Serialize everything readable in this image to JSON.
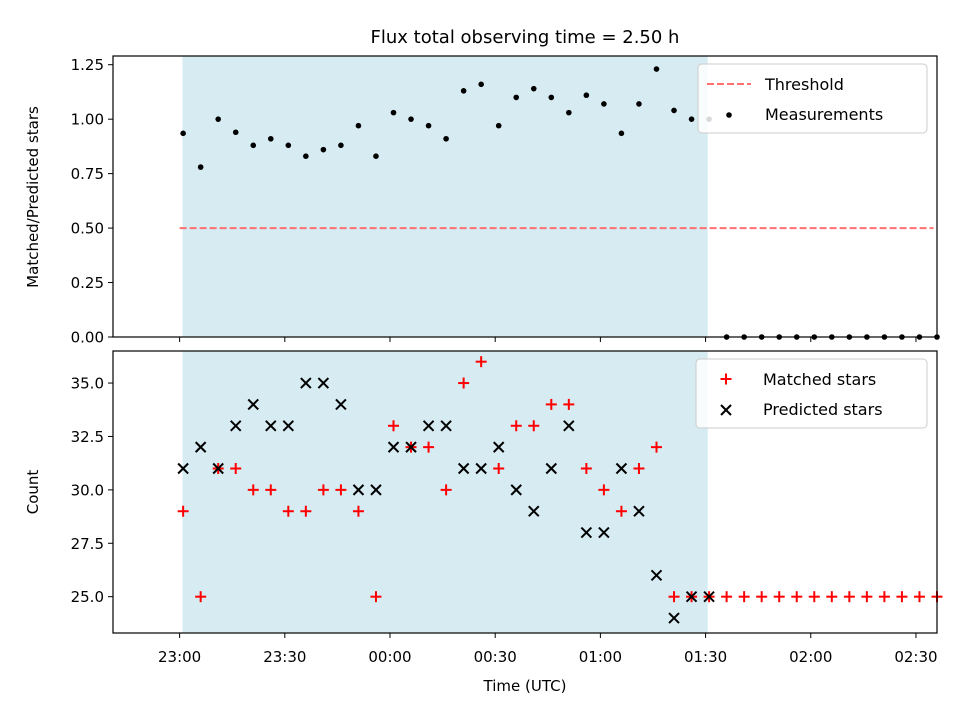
{
  "chart_data": [
    {
      "type": "scatter",
      "title": "Flux total observing time = 2.50 h",
      "xlabel": "",
      "ylabel": "Matched/Predicted stars",
      "ylim": [
        0,
        1.29
      ],
      "yticks": [
        "0.00",
        "0.25",
        "0.50",
        "0.75",
        "1.00",
        "1.25"
      ],
      "observing_window_color": "#add8e6",
      "legend": {
        "placement": "top-right",
        "entries": [
          "Threshold",
          "Measurements"
        ]
      },
      "threshold": {
        "name": "Threshold",
        "y": 0.5,
        "x_start": "23:00",
        "x_end": "02:35",
        "color": "#ff7070"
      },
      "measurements": {
        "name": "Measurements",
        "color": "#000000",
        "x": [
          "23:01",
          "23:06",
          "23:11",
          "23:16",
          "23:21",
          "23:26",
          "23:31",
          "23:36",
          "23:41",
          "23:46",
          "23:51",
          "23:56",
          "00:01",
          "00:06",
          "00:11",
          "00:16",
          "00:21",
          "00:26",
          "00:31",
          "00:36",
          "00:41",
          "00:46",
          "00:51",
          "00:56",
          "01:01",
          "01:06",
          "01:11",
          "01:16",
          "01:21",
          "01:26",
          "01:31",
          "01:36",
          "01:41",
          "01:46",
          "01:51",
          "01:56",
          "02:01",
          "02:06",
          "02:11",
          "02:16",
          "02:21",
          "02:26",
          "02:31",
          "02:36"
        ],
        "y": [
          0.935,
          0.78,
          1.0,
          0.94,
          0.88,
          0.91,
          0.88,
          0.83,
          0.86,
          0.88,
          0.97,
          0.83,
          1.03,
          1.0,
          0.97,
          0.91,
          1.13,
          1.16,
          0.97,
          1.1,
          1.14,
          1.1,
          1.03,
          1.11,
          1.07,
          0.935,
          1.07,
          1.23,
          1.04,
          1.0,
          1.0,
          0,
          0,
          0,
          0,
          0,
          0,
          0,
          0,
          0,
          0,
          0,
          0,
          0
        ]
      }
    },
    {
      "type": "scatter",
      "xlabel": "Time (UTC)",
      "ylabel": "Count",
      "ylim": [
        23.3,
        36.5
      ],
      "yticks": [
        "25.0",
        "27.5",
        "30.0",
        "32.5",
        "35.0"
      ],
      "xticks": [
        "23:00",
        "23:30",
        "00:00",
        "00:30",
        "01:00",
        "01:30",
        "02:00",
        "02:30"
      ],
      "observing_window_color": "#add8e6",
      "legend": {
        "placement": "top-right",
        "entries": [
          "Matched stars",
          "Predicted stars"
        ]
      },
      "series": [
        {
          "name": "Matched stars",
          "marker": "plus",
          "color": "#ff0000",
          "x": [
            "23:01",
            "23:06",
            "23:11",
            "23:16",
            "23:21",
            "23:26",
            "23:31",
            "23:36",
            "23:41",
            "23:46",
            "23:51",
            "23:56",
            "00:01",
            "00:06",
            "00:11",
            "00:16",
            "00:21",
            "00:26",
            "00:31",
            "00:36",
            "00:41",
            "00:46",
            "00:51",
            "00:56",
            "01:01",
            "01:06",
            "01:11",
            "01:16",
            "01:21",
            "01:26",
            "01:31",
            "01:36",
            "01:41",
            "01:46",
            "01:51",
            "01:56",
            "02:01",
            "02:06",
            "02:11",
            "02:16",
            "02:21",
            "02:26",
            "02:31",
            "02:36"
          ],
          "y": [
            29,
            25,
            31,
            31,
            30,
            30,
            29,
            29,
            30,
            30,
            29,
            25,
            33,
            32,
            32,
            30,
            35,
            36,
            31,
            33,
            33,
            34,
            34,
            31,
            30,
            29,
            31,
            32,
            25,
            25,
            25,
            25,
            25,
            25,
            25,
            25,
            25,
            25,
            25,
            25,
            25,
            25,
            25,
            25
          ]
        },
        {
          "name": "Predicted stars",
          "marker": "x",
          "color": "#000000",
          "x": [
            "23:01",
            "23:06",
            "23:11",
            "23:16",
            "23:21",
            "23:26",
            "23:31",
            "23:36",
            "23:41",
            "23:46",
            "23:51",
            "23:56",
            "00:01",
            "00:06",
            "00:11",
            "00:16",
            "00:21",
            "00:26",
            "00:31",
            "00:36",
            "00:41",
            "00:46",
            "00:51",
            "00:56",
            "01:01",
            "01:06",
            "01:11",
            "01:16",
            "01:21",
            "01:26",
            "01:31"
          ],
          "y": [
            31,
            32,
            31,
            33,
            34,
            33,
            33,
            35,
            35,
            34,
            30,
            30,
            32,
            32,
            33,
            33,
            31,
            31,
            32,
            30,
            29,
            31,
            33,
            28,
            28,
            31,
            29,
            26,
            24,
            25,
            25
          ]
        }
      ]
    }
  ]
}
